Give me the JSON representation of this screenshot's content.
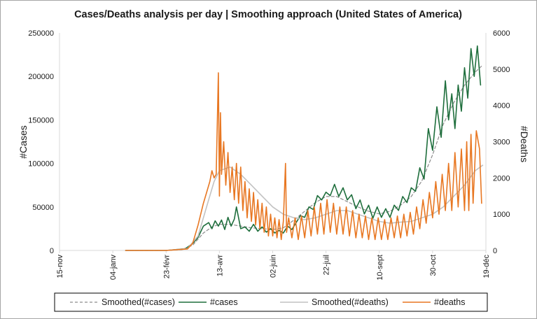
{
  "chart_data": {
    "type": "line",
    "title": "Cases/Deaths analysis per day | Smoothing approach (United States of America)",
    "xlabel": "",
    "ylabel": "#Cases",
    "y2label": "#Deaths",
    "ylim": [
      0,
      250000
    ],
    "y2lim": [
      0,
      6000
    ],
    "yticks": [
      "0",
      "50000",
      "100000",
      "150000",
      "200000",
      "250000"
    ],
    "y2ticks": [
      "0",
      "1000",
      "2000",
      "3000",
      "4000",
      "5000",
      "6000"
    ],
    "x_range_days": [
      0,
      400
    ],
    "x_ticks": [
      {
        "label": "15-nov",
        "day": 0
      },
      {
        "label": "04-janv",
        "day": 50
      },
      {
        "label": "23-févr",
        "day": 100
      },
      {
        "label": "13-avr",
        "day": 150
      },
      {
        "label": "02-juin",
        "day": 200
      },
      {
        "label": "22-juil",
        "day": 250
      },
      {
        "label": "10-sept",
        "day": 300
      },
      {
        "label": "30-oct",
        "day": 350
      },
      {
        "label": "19-déc",
        "day": 400
      }
    ],
    "legend_position": "bottom",
    "series": [
      {
        "name": "Smoothed(#cases)",
        "axis": "left",
        "color": "#8c8c8c",
        "dashed": true,
        "points": [
          [
            62,
            0
          ],
          [
            100,
            0
          ],
          [
            115,
            1000
          ],
          [
            125,
            6000
          ],
          [
            135,
            20000
          ],
          [
            143,
            27000
          ],
          [
            150,
            30000
          ],
          [
            160,
            30000
          ],
          [
            170,
            28000
          ],
          [
            180,
            26000
          ],
          [
            190,
            25000
          ],
          [
            200,
            24000
          ],
          [
            210,
            26000
          ],
          [
            220,
            35000
          ],
          [
            230,
            45000
          ],
          [
            240,
            55000
          ],
          [
            250,
            62000
          ],
          [
            260,
            62000
          ],
          [
            270,
            56000
          ],
          [
            280,
            50000
          ],
          [
            290,
            45000
          ],
          [
            300,
            42000
          ],
          [
            310,
            45000
          ],
          [
            320,
            52000
          ],
          [
            330,
            62000
          ],
          [
            340,
            80000
          ],
          [
            350,
            110000
          ],
          [
            360,
            145000
          ],
          [
            370,
            170000
          ],
          [
            380,
            190000
          ],
          [
            390,
            205000
          ],
          [
            397,
            213000
          ]
        ]
      },
      {
        "name": "#cases",
        "axis": "left",
        "color": "#1e6e3c",
        "dashed": false,
        "points": [
          [
            62,
            0
          ],
          [
            100,
            0
          ],
          [
            118,
            2000
          ],
          [
            125,
            8000
          ],
          [
            130,
            15000
          ],
          [
            135,
            28000
          ],
          [
            140,
            32000
          ],
          [
            143,
            25000
          ],
          [
            146,
            34000
          ],
          [
            149,
            28000
          ],
          [
            152,
            35000
          ],
          [
            155,
            24000
          ],
          [
            158,
            38000
          ],
          [
            161,
            28000
          ],
          [
            164,
            36000
          ],
          [
            166,
            50000
          ],
          [
            170,
            25000
          ],
          [
            174,
            27000
          ],
          [
            178,
            22000
          ],
          [
            182,
            30000
          ],
          [
            186,
            22000
          ],
          [
            190,
            27000
          ],
          [
            194,
            21000
          ],
          [
            198,
            25000
          ],
          [
            202,
            20000
          ],
          [
            206,
            23000
          ],
          [
            210,
            20000
          ],
          [
            214,
            28000
          ],
          [
            218,
            24000
          ],
          [
            222,
            32000
          ],
          [
            226,
            40000
          ],
          [
            230,
            38000
          ],
          [
            234,
            50000
          ],
          [
            238,
            47000
          ],
          [
            242,
            63000
          ],
          [
            246,
            58000
          ],
          [
            250,
            67000
          ],
          [
            254,
            63000
          ],
          [
            258,
            76000
          ],
          [
            262,
            62000
          ],
          [
            266,
            72000
          ],
          [
            270,
            58000
          ],
          [
            274,
            64000
          ],
          [
            278,
            48000
          ],
          [
            282,
            58000
          ],
          [
            286,
            42000
          ],
          [
            290,
            52000
          ],
          [
            294,
            37000
          ],
          [
            298,
            50000
          ],
          [
            302,
            38000
          ],
          [
            306,
            48000
          ],
          [
            310,
            38000
          ],
          [
            314,
            52000
          ],
          [
            318,
            46000
          ],
          [
            322,
            62000
          ],
          [
            326,
            55000
          ],
          [
            330,
            72000
          ],
          [
            334,
            68000
          ],
          [
            338,
            95000
          ],
          [
            342,
            82000
          ],
          [
            346,
            140000
          ],
          [
            350,
            115000
          ],
          [
            354,
            165000
          ],
          [
            358,
            130000
          ],
          [
            362,
            195000
          ],
          [
            365,
            150000
          ],
          [
            368,
            180000
          ],
          [
            371,
            140000
          ],
          [
            374,
            190000
          ],
          [
            377,
            160000
          ],
          [
            380,
            210000
          ],
          [
            383,
            175000
          ],
          [
            386,
            232000
          ],
          [
            389,
            200000
          ],
          [
            392,
            235000
          ],
          [
            395,
            190000
          ]
        ]
      },
      {
        "name": "Smoothed(#deaths)",
        "axis": "right",
        "color": "#c2c2c2",
        "dashed": false,
        "points": [
          [
            62,
            0
          ],
          [
            100,
            0
          ],
          [
            120,
            50
          ],
          [
            130,
            400
          ],
          [
            140,
            1400
          ],
          [
            145,
            1900
          ],
          [
            150,
            2200
          ],
          [
            160,
            2300
          ],
          [
            170,
            2100
          ],
          [
            180,
            1800
          ],
          [
            190,
            1500
          ],
          [
            200,
            1200
          ],
          [
            210,
            1000
          ],
          [
            220,
            900
          ],
          [
            230,
            850
          ],
          [
            240,
            900
          ],
          [
            250,
            1000
          ],
          [
            260,
            1100
          ],
          [
            270,
            1100
          ],
          [
            280,
            1000
          ],
          [
            290,
            900
          ],
          [
            300,
            800
          ],
          [
            310,
            750
          ],
          [
            320,
            780
          ],
          [
            330,
            800
          ],
          [
            340,
            900
          ],
          [
            350,
            1000
          ],
          [
            360,
            1200
          ],
          [
            370,
            1500
          ],
          [
            380,
            1800
          ],
          [
            390,
            2200
          ],
          [
            397,
            2350
          ]
        ]
      },
      {
        "name": "#deaths",
        "axis": "right",
        "color": "#e87722",
        "dashed": false,
        "points": [
          [
            62,
            0
          ],
          [
            100,
            0
          ],
          [
            120,
            40
          ],
          [
            125,
            200
          ],
          [
            130,
            700
          ],
          [
            135,
            1300
          ],
          [
            138,
            1600
          ],
          [
            141,
            1900
          ],
          [
            143,
            2200
          ],
          [
            145,
            2000
          ],
          [
            147,
            2100
          ],
          [
            149,
            4900
          ],
          [
            150,
            1500
          ],
          [
            151,
            3800
          ],
          [
            152,
            2100
          ],
          [
            154,
            3000
          ],
          [
            156,
            1800
          ],
          [
            158,
            2700
          ],
          [
            160,
            1600
          ],
          [
            162,
            2300
          ],
          [
            164,
            1400
          ],
          [
            166,
            2400
          ],
          [
            168,
            1300
          ],
          [
            170,
            2300
          ],
          [
            172,
            1100
          ],
          [
            174,
            1900
          ],
          [
            176,
            900
          ],
          [
            178,
            1700
          ],
          [
            180,
            800
          ],
          [
            182,
            1600
          ],
          [
            184,
            700
          ],
          [
            186,
            1400
          ],
          [
            188,
            600
          ],
          [
            190,
            1300
          ],
          [
            192,
            500
          ],
          [
            194,
            1200
          ],
          [
            196,
            400
          ],
          [
            198,
            1000
          ],
          [
            200,
            400
          ],
          [
            202,
            900
          ],
          [
            204,
            350
          ],
          [
            206,
            850
          ],
          [
            208,
            300
          ],
          [
            210,
            800
          ],
          [
            212,
            2400
          ],
          [
            213,
            500
          ],
          [
            215,
            900
          ],
          [
            218,
            350
          ],
          [
            221,
            900
          ],
          [
            224,
            300
          ],
          [
            227,
            950
          ],
          [
            230,
            350
          ],
          [
            233,
            1100
          ],
          [
            236,
            400
          ],
          [
            239,
            1200
          ],
          [
            242,
            450
          ],
          [
            245,
            1300
          ],
          [
            248,
            450
          ],
          [
            251,
            1400
          ],
          [
            254,
            500
          ],
          [
            257,
            1300
          ],
          [
            260,
            450
          ],
          [
            263,
            1200
          ],
          [
            266,
            450
          ],
          [
            269,
            1200
          ],
          [
            272,
            400
          ],
          [
            275,
            1100
          ],
          [
            278,
            350
          ],
          [
            281,
            1000
          ],
          [
            284,
            350
          ],
          [
            287,
            950
          ],
          [
            290,
            300
          ],
          [
            293,
            900
          ],
          [
            296,
            300
          ],
          [
            299,
            900
          ],
          [
            302,
            300
          ],
          [
            305,
            850
          ],
          [
            308,
            300
          ],
          [
            311,
            900
          ],
          [
            314,
            350
          ],
          [
            317,
            950
          ],
          [
            320,
            350
          ],
          [
            323,
            1000
          ],
          [
            326,
            400
          ],
          [
            329,
            1050
          ],
          [
            332,
            450
          ],
          [
            335,
            1200
          ],
          [
            338,
            600
          ],
          [
            341,
            1400
          ],
          [
            344,
            750
          ],
          [
            347,
            1600
          ],
          [
            350,
            900
          ],
          [
            353,
            1900
          ],
          [
            356,
            1000
          ],
          [
            359,
            2100
          ],
          [
            362,
            1100
          ],
          [
            365,
            2400
          ],
          [
            368,
            1100
          ],
          [
            371,
            2700
          ],
          [
            374,
            1200
          ],
          [
            377,
            2800
          ],
          [
            380,
            1100
          ],
          [
            382,
            3000
          ],
          [
            384,
            1100
          ],
          [
            386,
            3200
          ],
          [
            388,
            1300
          ],
          [
            391,
            3300
          ],
          [
            394,
            2800
          ],
          [
            396,
            1300
          ]
        ]
      }
    ]
  }
}
